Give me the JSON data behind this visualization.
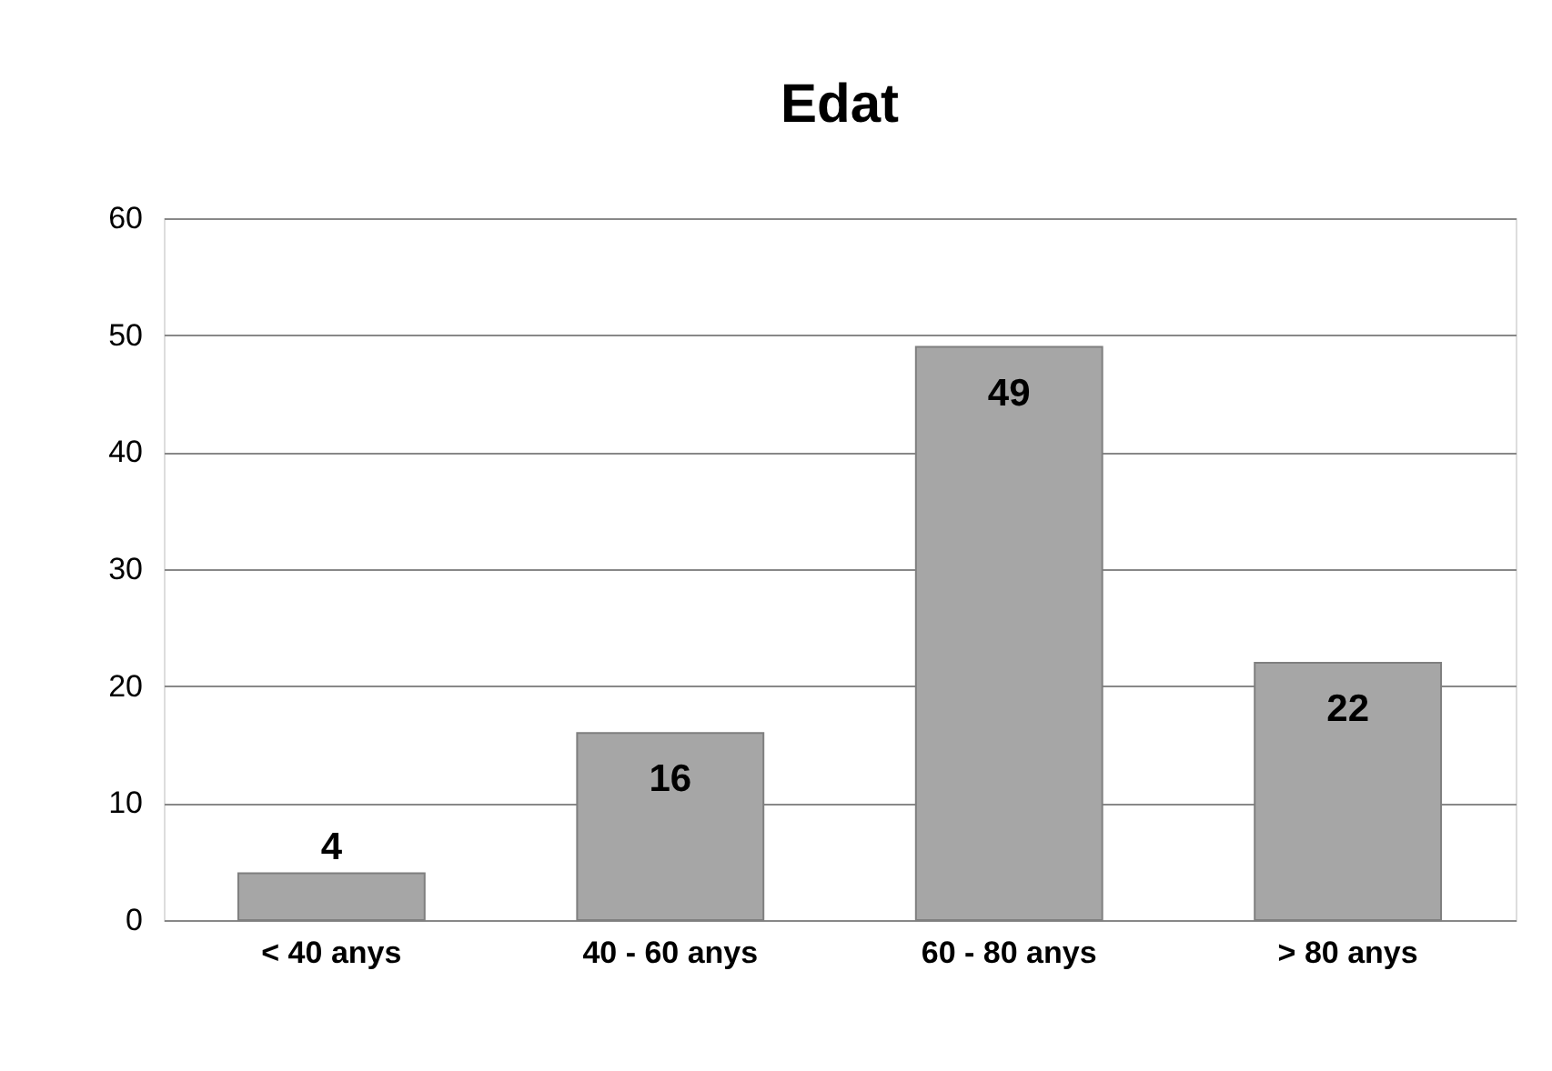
{
  "chart_data": {
    "type": "bar",
    "title": "Edat",
    "categories": [
      "< 40 anys",
      "40 - 60 anys",
      "60 - 80 anys",
      "> 80 anys"
    ],
    "values": [
      4,
      16,
      49,
      22
    ],
    "color": "#a6a6a6",
    "ylim": [
      0,
      60
    ],
    "yticks": [
      0,
      10,
      20,
      30,
      40,
      50,
      60
    ],
    "grid": "y",
    "data_labels": true
  }
}
